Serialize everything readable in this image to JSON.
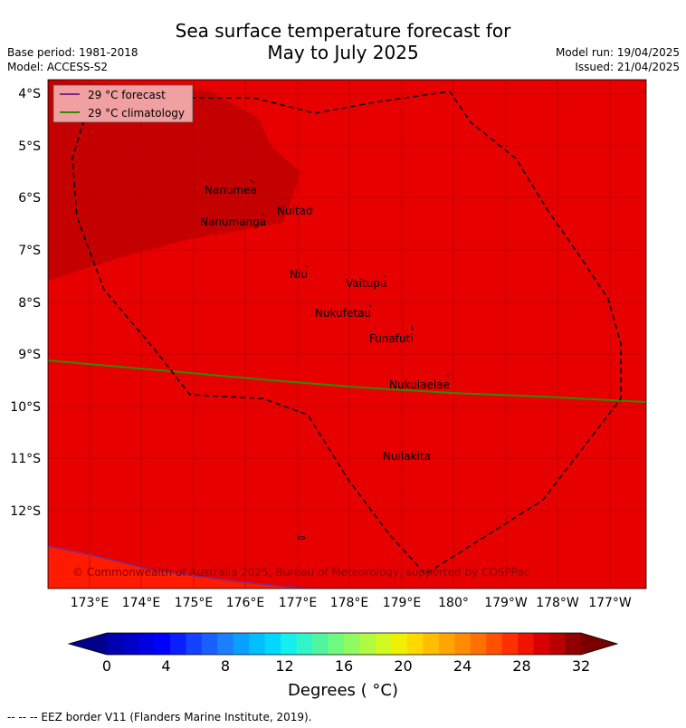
{
  "header": {
    "title_line1": "Sea surface temperature forecast for",
    "title_line2": "May to July 2025",
    "base_period": "Base period: 1981-2018",
    "model": "Model: ACCESS-S2",
    "model_run": "Model run: 19/04/2025",
    "issued": "Issued: 21/04/2025"
  },
  "legend": {
    "forecast_label": "29 °C  forecast",
    "forecast_color": "#7b2a8a",
    "climatology_label": "29 °C  climatology",
    "climatology_color": "#2e8b00"
  },
  "map": {
    "lat_labels": [
      "4°S",
      "5°S",
      "6°S",
      "7°S",
      "8°S",
      "9°S",
      "10°S",
      "11°S",
      "12°S"
    ],
    "lon_labels": [
      "173°E",
      "174°E",
      "175°E",
      "176°E",
      "177°E",
      "178°E",
      "179°E",
      "180°",
      "179°W",
      "178°W",
      "177°W"
    ],
    "islands": [
      "Nanumea",
      "Nuitao",
      "Nanumanga",
      "Niu",
      "Vaitupu",
      "Nukufetau",
      "Funafuti",
      "Nukulaelae",
      "Nuilakita"
    ],
    "copyright": "© Commonwealth of Australia 2025, Bureau of Meteorology, supported by COSPPac",
    "colors": {
      "sea_main": "#e60000",
      "sea_warm": "#c40000",
      "sea_cool": "#ff1a00"
    }
  },
  "colorbar": {
    "tick_labels": [
      "0",
      "4",
      "8",
      "12",
      "16",
      "20",
      "24",
      "28",
      "32"
    ],
    "title": "Degrees ( °C)",
    "colors": [
      "#0000b0",
      "#0000c8",
      "#0000e0",
      "#0000ff",
      "#0a1eff",
      "#1440ff",
      "#1a60ff",
      "#1a80ff",
      "#0aa0ff",
      "#00bfff",
      "#00d8ff",
      "#14f0f0",
      "#30f5c8",
      "#50f5a0",
      "#70fa80",
      "#90fa60",
      "#b0fa40",
      "#d0fa20",
      "#f0f000",
      "#ffd800",
      "#ffbe00",
      "#ffa500",
      "#ff8c00",
      "#ff7000",
      "#ff5000",
      "#ff3000",
      "#f01400",
      "#d80000",
      "#b80000",
      "#900000"
    ]
  },
  "footer": "--  --  -- EEZ border V11 (Flanders Marine Institute, 2019)."
}
